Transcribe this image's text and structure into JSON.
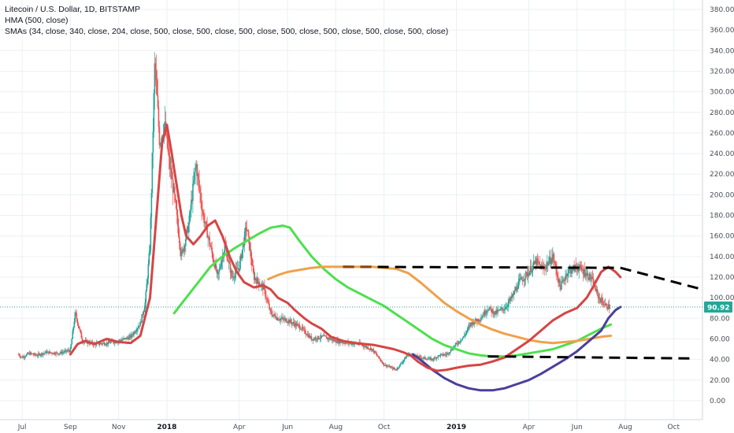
{
  "legend": {
    "title": "Litecoin / U.S. Dollar, 1D, BITSTAMP",
    "hma": "HMA (500, close)",
    "smas": "SMAs (34, close, 340, close, 204, close, 500, close, 500, close, 500, close, 500, close, 500, close, 500, close, 500, close)"
  },
  "colors": {
    "up": "#26a69a",
    "down": "#ef5350",
    "hma": "#4a3f9c",
    "sma_fast": "#d64545",
    "sma_mid": "#4de04d",
    "sma_slow": "#f0a04b",
    "dashed": "#000000",
    "last_price_line": "#26a69a",
    "grid": "#eceff3"
  },
  "chart_data": {
    "type": "candlestick",
    "y_axis": {
      "min": 0,
      "max": 380,
      "step": 20,
      "position": "right"
    },
    "y_tick_labels": [
      "0.00",
      "20.00",
      "40.00",
      "60.00",
      "80.00",
      "100.00",
      "120.00",
      "140.00",
      "160.00",
      "180.00",
      "200.00",
      "220.00",
      "240.00",
      "260.00",
      "280.00",
      "300.00",
      "320.00",
      "340.00",
      "360.00",
      "380.00"
    ],
    "x_tick_labels": [
      {
        "label": "Jul",
        "bold": false
      },
      {
        "label": "Sep",
        "bold": false
      },
      {
        "label": "Nov",
        "bold": false
      },
      {
        "label": "2018",
        "bold": true
      },
      {
        "label": "Apr",
        "bold": false
      },
      {
        "label": "Jun",
        "bold": false
      },
      {
        "label": "Aug",
        "bold": false
      },
      {
        "label": "Oct",
        "bold": false
      },
      {
        "label": "2019",
        "bold": true
      },
      {
        "label": "Apr",
        "bold": false
      },
      {
        "label": "Jun",
        "bold": false
      },
      {
        "label": "Aug",
        "bold": false
      },
      {
        "label": "Oct",
        "bold": false
      }
    ],
    "x_tick_months": [
      0,
      2,
      4,
      6,
      9,
      11,
      13,
      15,
      18,
      21,
      23,
      25,
      27
    ],
    "x_domain_months": [
      -0.2,
      28.2
    ],
    "last_price": 90.92,
    "last_price_label": "90.92",
    "price_series": {
      "months": [
        -0.15,
        0,
        0.3,
        0.6,
        1,
        1.5,
        2,
        2.2,
        2.5,
        3,
        3.5,
        4,
        4.5,
        4.9,
        5.1,
        5.3,
        5.5,
        5.7,
        5.9,
        6.1,
        6.3,
        6.6,
        6.9,
        7.2,
        7.5,
        7.8,
        8.1,
        8.4,
        8.7,
        9,
        9.3,
        9.6,
        10,
        10.3,
        10.6,
        11,
        11.5,
        12,
        12.5,
        13,
        13.5,
        14,
        14.5,
        15,
        15.5,
        16,
        16.5,
        17,
        17.3,
        17.6,
        18,
        18.3,
        18.6,
        19,
        19.3,
        19.6,
        20,
        20.3,
        20.6,
        21,
        21.3,
        21.6,
        22,
        22.3,
        22.6,
        23,
        23.3,
        23.6,
        23.9,
        24.2,
        24.4
      ],
      "close": [
        45,
        42,
        46,
        44,
        47,
        46,
        49,
        85,
        58,
        55,
        56,
        58,
        62,
        75,
        95,
        150,
        330,
        250,
        270,
        230,
        200,
        140,
        170,
        230,
        180,
        150,
        120,
        150,
        120,
        130,
        170,
        120,
        110,
        85,
        80,
        78,
        72,
        60,
        62,
        58,
        56,
        55,
        50,
        35,
        30,
        45,
        42,
        40,
        44,
        45,
        55,
        62,
        75,
        80,
        90,
        85,
        90,
        100,
        115,
        125,
        135,
        128,
        140,
        110,
        125,
        130,
        125,
        118,
        100,
        92,
        91
      ]
    },
    "series": [
      {
        "name": "HMA (500, close)",
        "color_key": "hma",
        "points": [
          [
            16.2,
            45
          ],
          [
            16.6,
            38
          ],
          [
            17,
            30
          ],
          [
            17.5,
            22
          ],
          [
            18,
            16
          ],
          [
            18.5,
            12
          ],
          [
            19,
            10
          ],
          [
            19.5,
            10
          ],
          [
            20,
            12
          ],
          [
            20.5,
            16
          ],
          [
            21,
            20
          ],
          [
            21.5,
            26
          ],
          [
            22,
            33
          ],
          [
            22.5,
            40
          ],
          [
            23,
            48
          ],
          [
            23.5,
            58
          ],
          [
            24,
            68
          ],
          [
            24.3,
            80
          ],
          [
            24.6,
            88
          ],
          [
            24.8,
            91
          ]
        ]
      },
      {
        "name": "SMA 34",
        "color_key": "sma_fast",
        "points": [
          [
            2,
            45
          ],
          [
            2.3,
            55
          ],
          [
            2.6,
            58
          ],
          [
            3,
            55
          ],
          [
            3.5,
            60
          ],
          [
            4,
            57
          ],
          [
            4.5,
            56
          ],
          [
            4.9,
            63
          ],
          [
            5.3,
            100
          ],
          [
            5.6,
            190
          ],
          [
            5.8,
            250
          ],
          [
            6,
            268
          ],
          [
            6.2,
            240
          ],
          [
            6.4,
            210
          ],
          [
            6.6,
            180
          ],
          [
            6.8,
            160
          ],
          [
            7.1,
            152
          ],
          [
            7.4,
            160
          ],
          [
            7.7,
            170
          ],
          [
            8,
            175
          ],
          [
            8.3,
            160
          ],
          [
            8.6,
            140
          ],
          [
            8.9,
            125
          ],
          [
            9.2,
            115
          ],
          [
            9.6,
            110
          ],
          [
            10,
            112
          ],
          [
            10.3,
            108
          ],
          [
            10.6,
            100
          ],
          [
            11,
            95
          ],
          [
            11.3,
            88
          ],
          [
            11.7,
            80
          ],
          [
            12,
            75
          ],
          [
            12.4,
            70
          ],
          [
            12.8,
            62
          ],
          [
            13.3,
            58
          ],
          [
            13.8,
            56
          ],
          [
            14.2,
            55
          ],
          [
            14.6,
            54
          ],
          [
            15,
            52
          ],
          [
            15.4,
            50
          ],
          [
            15.8,
            47
          ],
          [
            16.1,
            44
          ],
          [
            16.4,
            38
          ],
          [
            16.8,
            32
          ],
          [
            17.2,
            29
          ],
          [
            17.6,
            30
          ],
          [
            18,
            32
          ],
          [
            18.5,
            34
          ],
          [
            19,
            35
          ],
          [
            19.5,
            38
          ],
          [
            20,
            42
          ],
          [
            20.5,
            50
          ],
          [
            21,
            58
          ],
          [
            21.5,
            68
          ],
          [
            22,
            78
          ],
          [
            22.5,
            85
          ],
          [
            23,
            90
          ],
          [
            23.4,
            100
          ],
          [
            23.7,
            112
          ],
          [
            24,
            125
          ],
          [
            24.3,
            130
          ],
          [
            24.6,
            125
          ],
          [
            24.8,
            120
          ]
        ]
      },
      {
        "name": "SMA 340",
        "color_key": "sma_mid",
        "points": [
          [
            6.3,
            85
          ],
          [
            6.8,
            100
          ],
          [
            7.3,
            115
          ],
          [
            7.8,
            130
          ],
          [
            8.3,
            140
          ],
          [
            8.8,
            148
          ],
          [
            9.3,
            155
          ],
          [
            9.8,
            162
          ],
          [
            10.3,
            168
          ],
          [
            10.8,
            170
          ],
          [
            11.1,
            168
          ],
          [
            11.5,
            155
          ],
          [
            12,
            140
          ],
          [
            12.5,
            128
          ],
          [
            13,
            118
          ],
          [
            13.5,
            110
          ],
          [
            14,
            104
          ],
          [
            14.5,
            98
          ],
          [
            15,
            92
          ],
          [
            15.5,
            84
          ],
          [
            16,
            76
          ],
          [
            16.5,
            68
          ],
          [
            17,
            60
          ],
          [
            17.5,
            54
          ],
          [
            18,
            50
          ],
          [
            18.5,
            46
          ],
          [
            19,
            44
          ],
          [
            19.5,
            43
          ],
          [
            20,
            43
          ],
          [
            20.5,
            44
          ],
          [
            21,
            46
          ],
          [
            21.5,
            48
          ],
          [
            22,
            50
          ],
          [
            22.5,
            54
          ],
          [
            23,
            58
          ],
          [
            23.5,
            64
          ],
          [
            24,
            70
          ],
          [
            24.4,
            74
          ]
        ]
      },
      {
        "name": "SMA 204",
        "color_key": "sma_slow",
        "points": [
          [
            10.2,
            118
          ],
          [
            10.6,
            122
          ],
          [
            11,
            125
          ],
          [
            11.5,
            127
          ],
          [
            12,
            129
          ],
          [
            12.5,
            130
          ],
          [
            13,
            130
          ],
          [
            13.5,
            130
          ],
          [
            14,
            130
          ],
          [
            14.5,
            130
          ],
          [
            15,
            129
          ],
          [
            15.5,
            128
          ],
          [
            16,
            124
          ],
          [
            16.5,
            115
          ],
          [
            17,
            105
          ],
          [
            17.5,
            95
          ],
          [
            18,
            87
          ],
          [
            18.5,
            80
          ],
          [
            19,
            74
          ],
          [
            19.5,
            69
          ],
          [
            20,
            65
          ],
          [
            20.5,
            62
          ],
          [
            21,
            59
          ],
          [
            21.5,
            57
          ],
          [
            22,
            56
          ],
          [
            22.5,
            57
          ],
          [
            23,
            58
          ],
          [
            23.5,
            60
          ],
          [
            24,
            62
          ],
          [
            24.4,
            63
          ]
        ]
      }
    ],
    "trendlines": [
      {
        "name": "upper-resistance",
        "points": [
          [
            13.3,
            130
          ],
          [
            24.8,
            129
          ]
        ]
      },
      {
        "name": "upper-extension",
        "points": [
          [
            24.8,
            129
          ],
          [
            28.2,
            108
          ]
        ]
      },
      {
        "name": "lower-support",
        "points": [
          [
            19.3,
            43
          ],
          [
            27.9,
            41
          ]
        ]
      }
    ],
    "resistance_highlight": [
      [
        13.3,
        130
      ],
      [
        14.5,
        130
      ]
    ]
  }
}
